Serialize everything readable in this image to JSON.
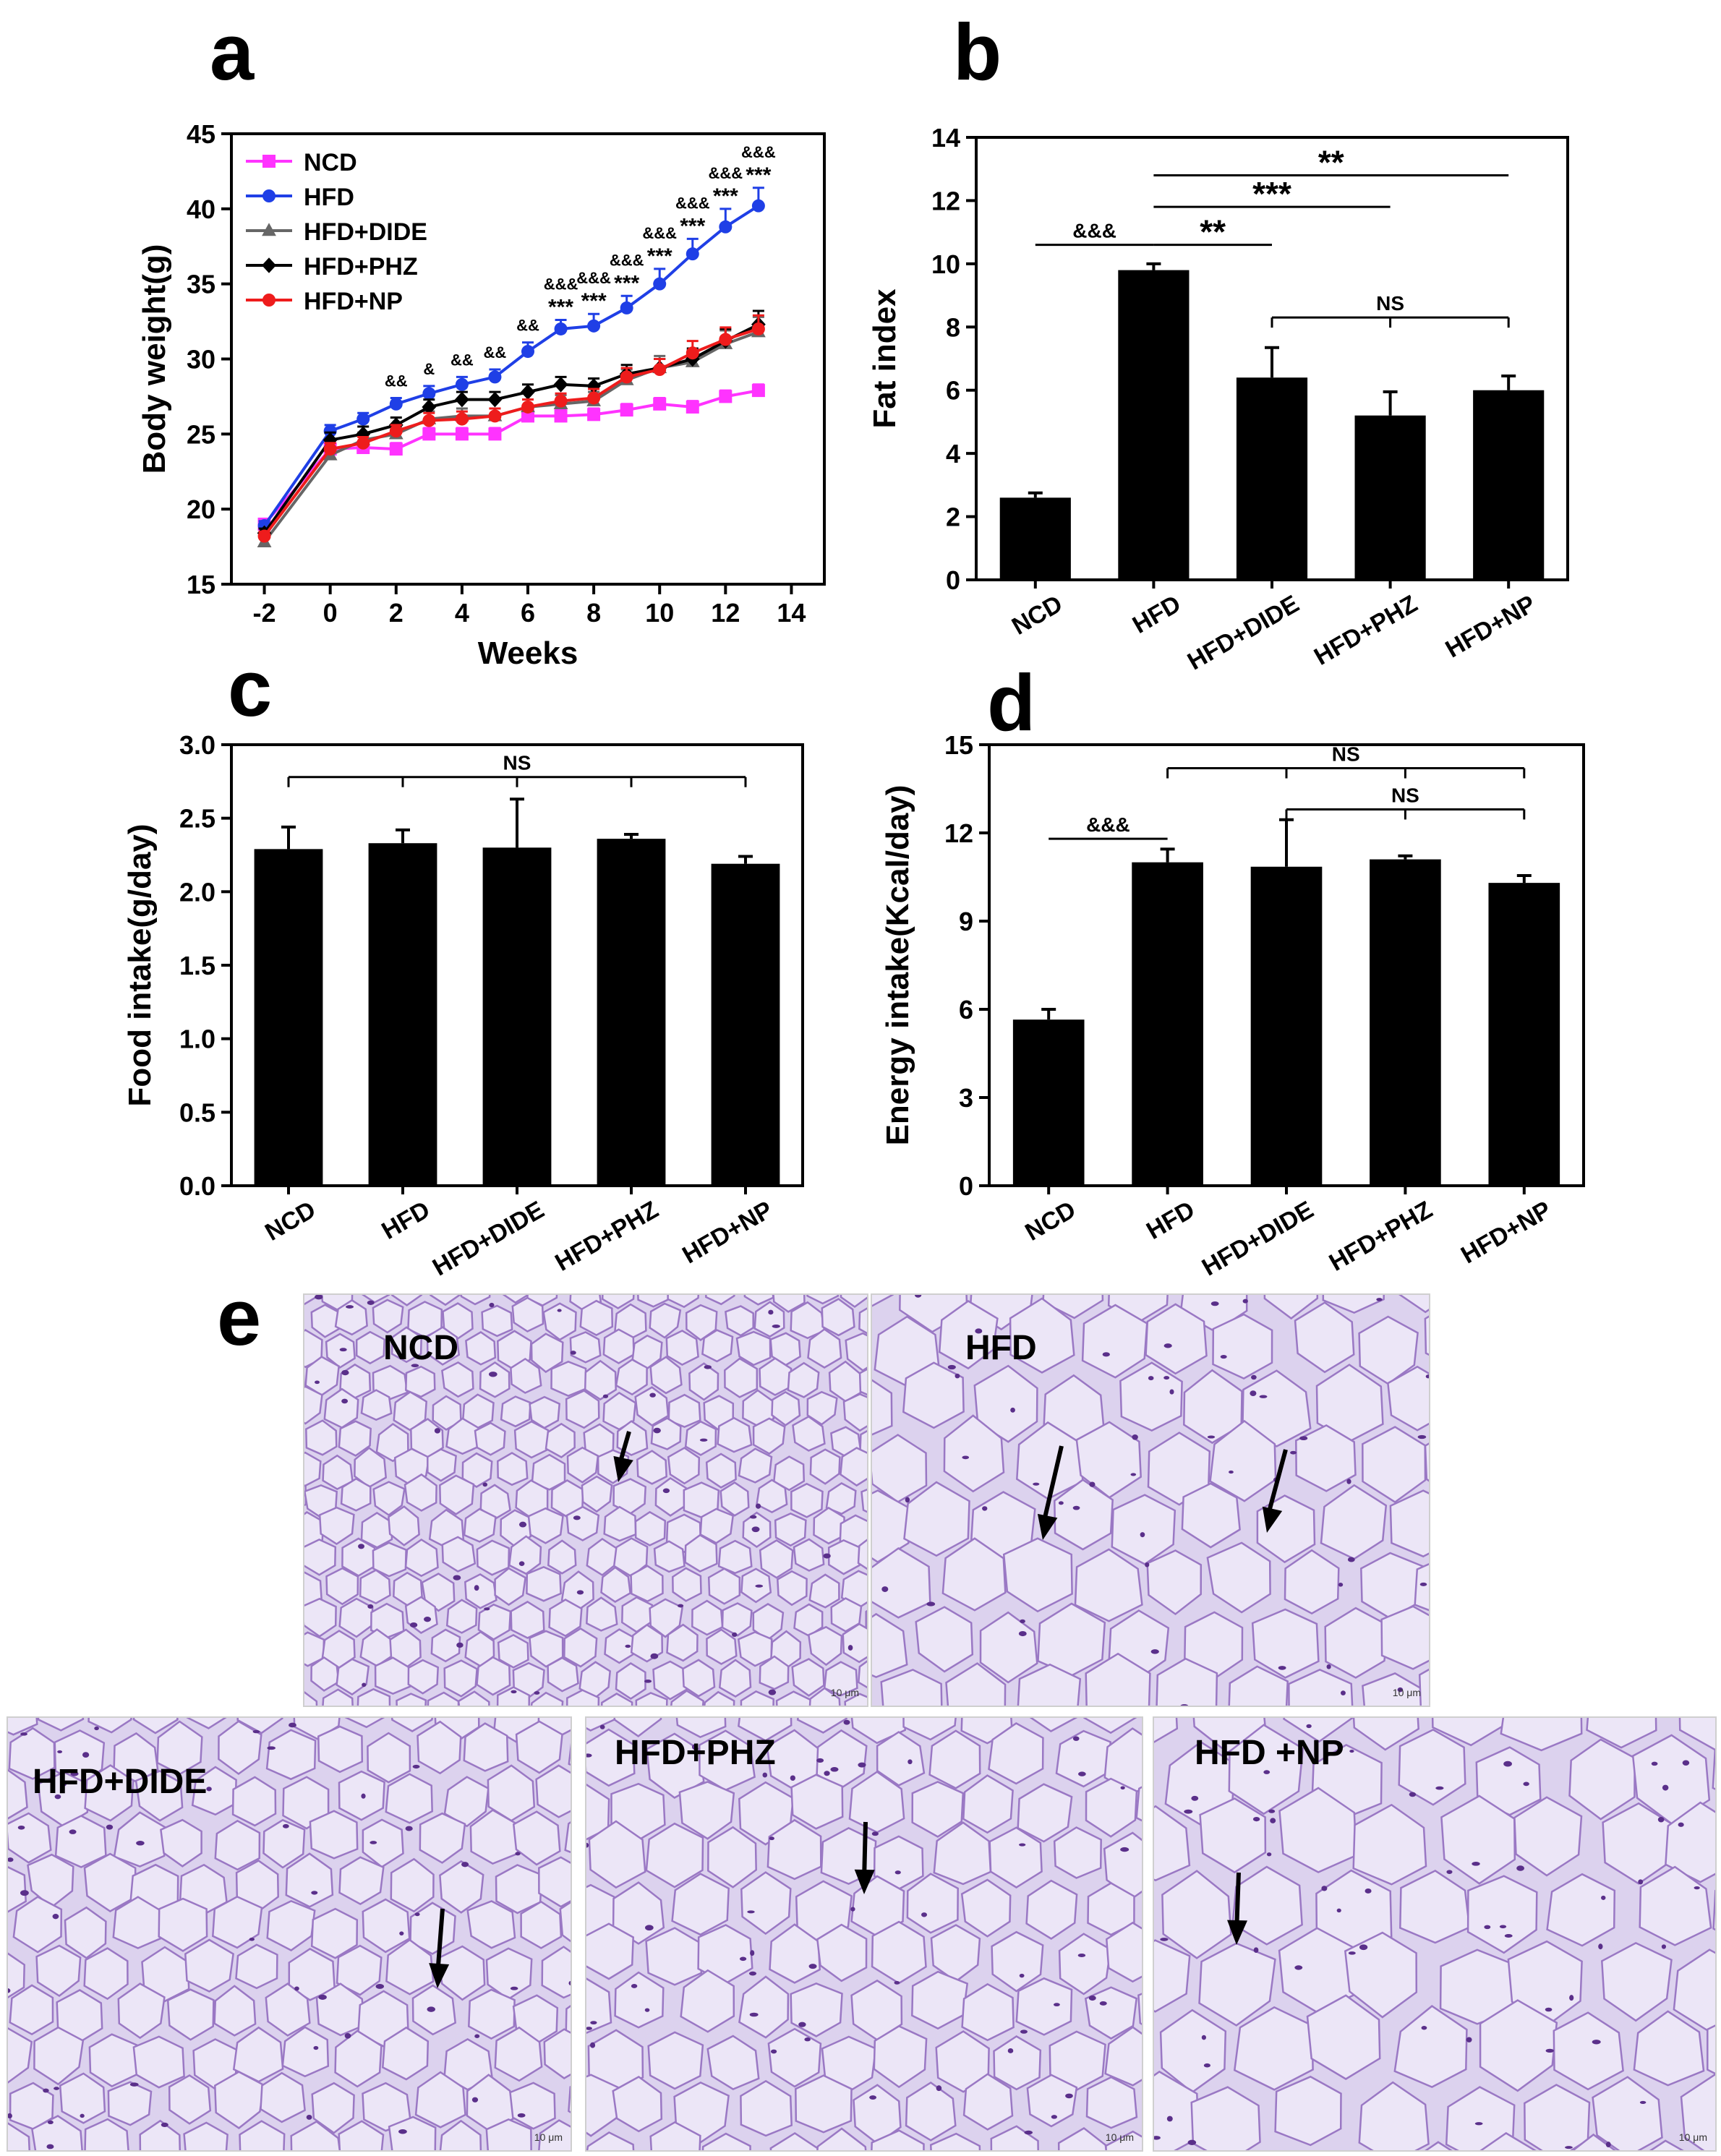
{
  "panel_letters": [
    "a",
    "b",
    "c",
    "d",
    "e"
  ],
  "colors": {
    "NCD": "#ff33ff",
    "HFD": "#1f3fe6",
    "HFD+DIDE": "#666666",
    "HFD+PHZ": "#000000",
    "HFD+NP": "#ee1c1c",
    "bar": "#000000",
    "tissue_bg": "#dcd2ee",
    "membrane": "#9a78c4"
  },
  "chart_data": [
    {
      "id": "a",
      "type": "line",
      "xlabel": "Weeks",
      "ylabel": "Body weight(g)",
      "xlim": [
        -3,
        15
      ],
      "ylim": [
        15,
        45
      ],
      "xticks": [
        -2,
        0,
        2,
        4,
        6,
        8,
        10,
        12,
        14
      ],
      "yticks": [
        15,
        20,
        25,
        30,
        35,
        40,
        45
      ],
      "x": [
        -2,
        0,
        1,
        2,
        3,
        4,
        5,
        6,
        7,
        8,
        9,
        10,
        11,
        12,
        13
      ],
      "legend_position": "top-left",
      "series": [
        {
          "name": "NCD",
          "values": [
            19.0,
            24.0,
            24.1,
            24.0,
            25.0,
            25.0,
            25.0,
            26.2,
            26.2,
            26.3,
            26.6,
            27.0,
            26.8,
            27.5,
            27.9
          ],
          "error": [
            0.3,
            0.4,
            0.4,
            0.4,
            0.4,
            0.4,
            0.4,
            0.4,
            0.4,
            0.4,
            0.4,
            0.4,
            0.4,
            0.4,
            0.4
          ]
        },
        {
          "name": "HFD",
          "values": [
            18.9,
            25.2,
            26.0,
            27.0,
            27.7,
            28.3,
            28.8,
            30.5,
            32.0,
            32.2,
            33.4,
            35.0,
            37.0,
            38.8,
            40.2
          ],
          "error": [
            0.3,
            0.4,
            0.4,
            0.4,
            0.5,
            0.5,
            0.5,
            0.6,
            0.6,
            0.8,
            0.8,
            1.0,
            1.0,
            1.2,
            1.2
          ]
        },
        {
          "name": "HFD+DIDE",
          "values": [
            17.8,
            23.6,
            24.6,
            25.0,
            26.0,
            26.2,
            26.2,
            26.8,
            27.0,
            27.2,
            28.6,
            29.4,
            29.8,
            31.0,
            31.8
          ],
          "error": [
            0.3,
            0.5,
            0.5,
            0.5,
            0.5,
            0.5,
            0.5,
            0.5,
            0.6,
            0.6,
            0.7,
            0.8,
            0.8,
            0.9,
            1.0
          ]
        },
        {
          "name": "HFD+PHZ",
          "values": [
            18.4,
            24.6,
            25.0,
            25.6,
            26.8,
            27.3,
            27.3,
            27.8,
            28.3,
            28.2,
            29.0,
            29.4,
            30.0,
            31.2,
            32.3
          ],
          "error": [
            0.3,
            0.5,
            0.5,
            0.5,
            0.5,
            0.5,
            0.5,
            0.5,
            0.5,
            0.5,
            0.6,
            0.6,
            0.7,
            0.8,
            0.9
          ]
        },
        {
          "name": "HFD+NP",
          "values": [
            18.2,
            24.0,
            24.4,
            25.2,
            25.9,
            26.0,
            26.2,
            26.8,
            27.2,
            27.4,
            28.8,
            29.3,
            30.4,
            31.3,
            32.0
          ],
          "error": [
            0.3,
            0.4,
            0.4,
            0.4,
            0.5,
            0.5,
            0.5,
            0.5,
            0.5,
            0.6,
            0.6,
            0.7,
            0.8,
            0.8,
            0.9
          ]
        }
      ],
      "annotations": [
        {
          "x": 2,
          "lines": [
            "&&"
          ]
        },
        {
          "x": 3,
          "lines": [
            "&"
          ]
        },
        {
          "x": 4,
          "lines": [
            "&&"
          ]
        },
        {
          "x": 5,
          "lines": [
            "&&"
          ]
        },
        {
          "x": 6,
          "lines": [
            "&&"
          ]
        },
        {
          "x": 7,
          "lines": [
            "&&&",
            "***"
          ]
        },
        {
          "x": 8,
          "lines": [
            "&&&",
            "***"
          ]
        },
        {
          "x": 9,
          "lines": [
            "&&&",
            "***"
          ]
        },
        {
          "x": 10,
          "lines": [
            "&&&",
            "***"
          ]
        },
        {
          "x": 11,
          "lines": [
            "&&&",
            "***"
          ]
        },
        {
          "x": 12,
          "lines": [
            "&&&",
            "***"
          ]
        },
        {
          "x": 13,
          "lines": [
            "&&&",
            "***"
          ]
        }
      ]
    },
    {
      "id": "b",
      "type": "bar",
      "categories": [
        "NCD",
        "HFD",
        "HFD+DIDE",
        "HFD+PHZ",
        "HFD+NP"
      ],
      "values": [
        2.6,
        9.8,
        6.4,
        5.2,
        6.0
      ],
      "errors": [
        0.15,
        0.2,
        0.95,
        0.75,
        0.45
      ],
      "ylabel": "Fat index",
      "xlabel": "",
      "ylim": [
        0,
        14
      ],
      "yticks": [
        0,
        2,
        4,
        6,
        8,
        10,
        12,
        14
      ],
      "brackets": [
        {
          "from": 0,
          "to": 1,
          "y": 10.6,
          "label": "&&&",
          "type": "simple"
        },
        {
          "from": 1,
          "to": 2,
          "y": 10.6,
          "label": "**",
          "type": "simple"
        },
        {
          "from": 1,
          "to": 3,
          "y": 11.8,
          "label": "***",
          "type": "simple"
        },
        {
          "from": 1,
          "to": 4,
          "y": 12.8,
          "label": "**",
          "type": "simple"
        },
        {
          "from": 2,
          "to": 4,
          "y": 8.3,
          "label": "NS",
          "type": "group",
          "ticks": [
            2,
            3,
            4
          ]
        }
      ]
    },
    {
      "id": "c",
      "type": "bar",
      "categories": [
        "NCD",
        "HFD",
        "HFD+DIDE",
        "HFD+PHZ",
        "HFD+NP"
      ],
      "values": [
        2.29,
        2.33,
        2.3,
        2.36,
        2.19
      ],
      "errors": [
        0.15,
        0.09,
        0.33,
        0.03,
        0.05
      ],
      "ylabel": "Food intake(g/day)",
      "xlabel": "",
      "ylim": [
        0,
        3.0
      ],
      "yticks": [
        "0.0",
        "0.5",
        "1.0",
        "1.5",
        "2.0",
        "2.5",
        "3.0"
      ],
      "brackets": [
        {
          "from": 0,
          "to": 4,
          "y": 2.78,
          "label": "NS",
          "type": "group",
          "ticks": [
            0,
            1,
            2,
            3,
            4
          ]
        }
      ]
    },
    {
      "id": "d",
      "type": "bar",
      "categories": [
        "NCD",
        "HFD",
        "HFD+DIDE",
        "HFD+PHZ",
        "HFD+NP"
      ],
      "values": [
        5.65,
        11.0,
        10.85,
        11.1,
        10.3
      ],
      "errors": [
        0.35,
        0.45,
        1.6,
        0.12,
        0.25
      ],
      "ylabel": "Energy intake(Kcal/day)",
      "xlabel": "",
      "ylim": [
        0,
        15
      ],
      "yticks": [
        0,
        3,
        6,
        9,
        12,
        15
      ],
      "brackets": [
        {
          "from": 0,
          "to": 1,
          "y": 11.8,
          "label": "&&&",
          "type": "simple"
        },
        {
          "from": 1,
          "to": 4,
          "y": 14.2,
          "label": "NS",
          "type": "group",
          "ticks": [
            1,
            2,
            3,
            4
          ]
        },
        {
          "from": 2,
          "to": 4,
          "y": 12.8,
          "label": "NS",
          "type": "group",
          "ticks": [
            2,
            3,
            4
          ]
        }
      ]
    }
  ],
  "histology": {
    "panels": [
      {
        "label": "NCD",
        "scale": "10 μm"
      },
      {
        "label": "HFD",
        "scale": "10 μm"
      },
      {
        "label": "HFD+DIDE",
        "scale": "10 μm"
      },
      {
        "label": "HFD+PHZ",
        "scale": "10 μm"
      },
      {
        "label": "HFD +NP",
        "scale": "10 μm"
      }
    ]
  }
}
